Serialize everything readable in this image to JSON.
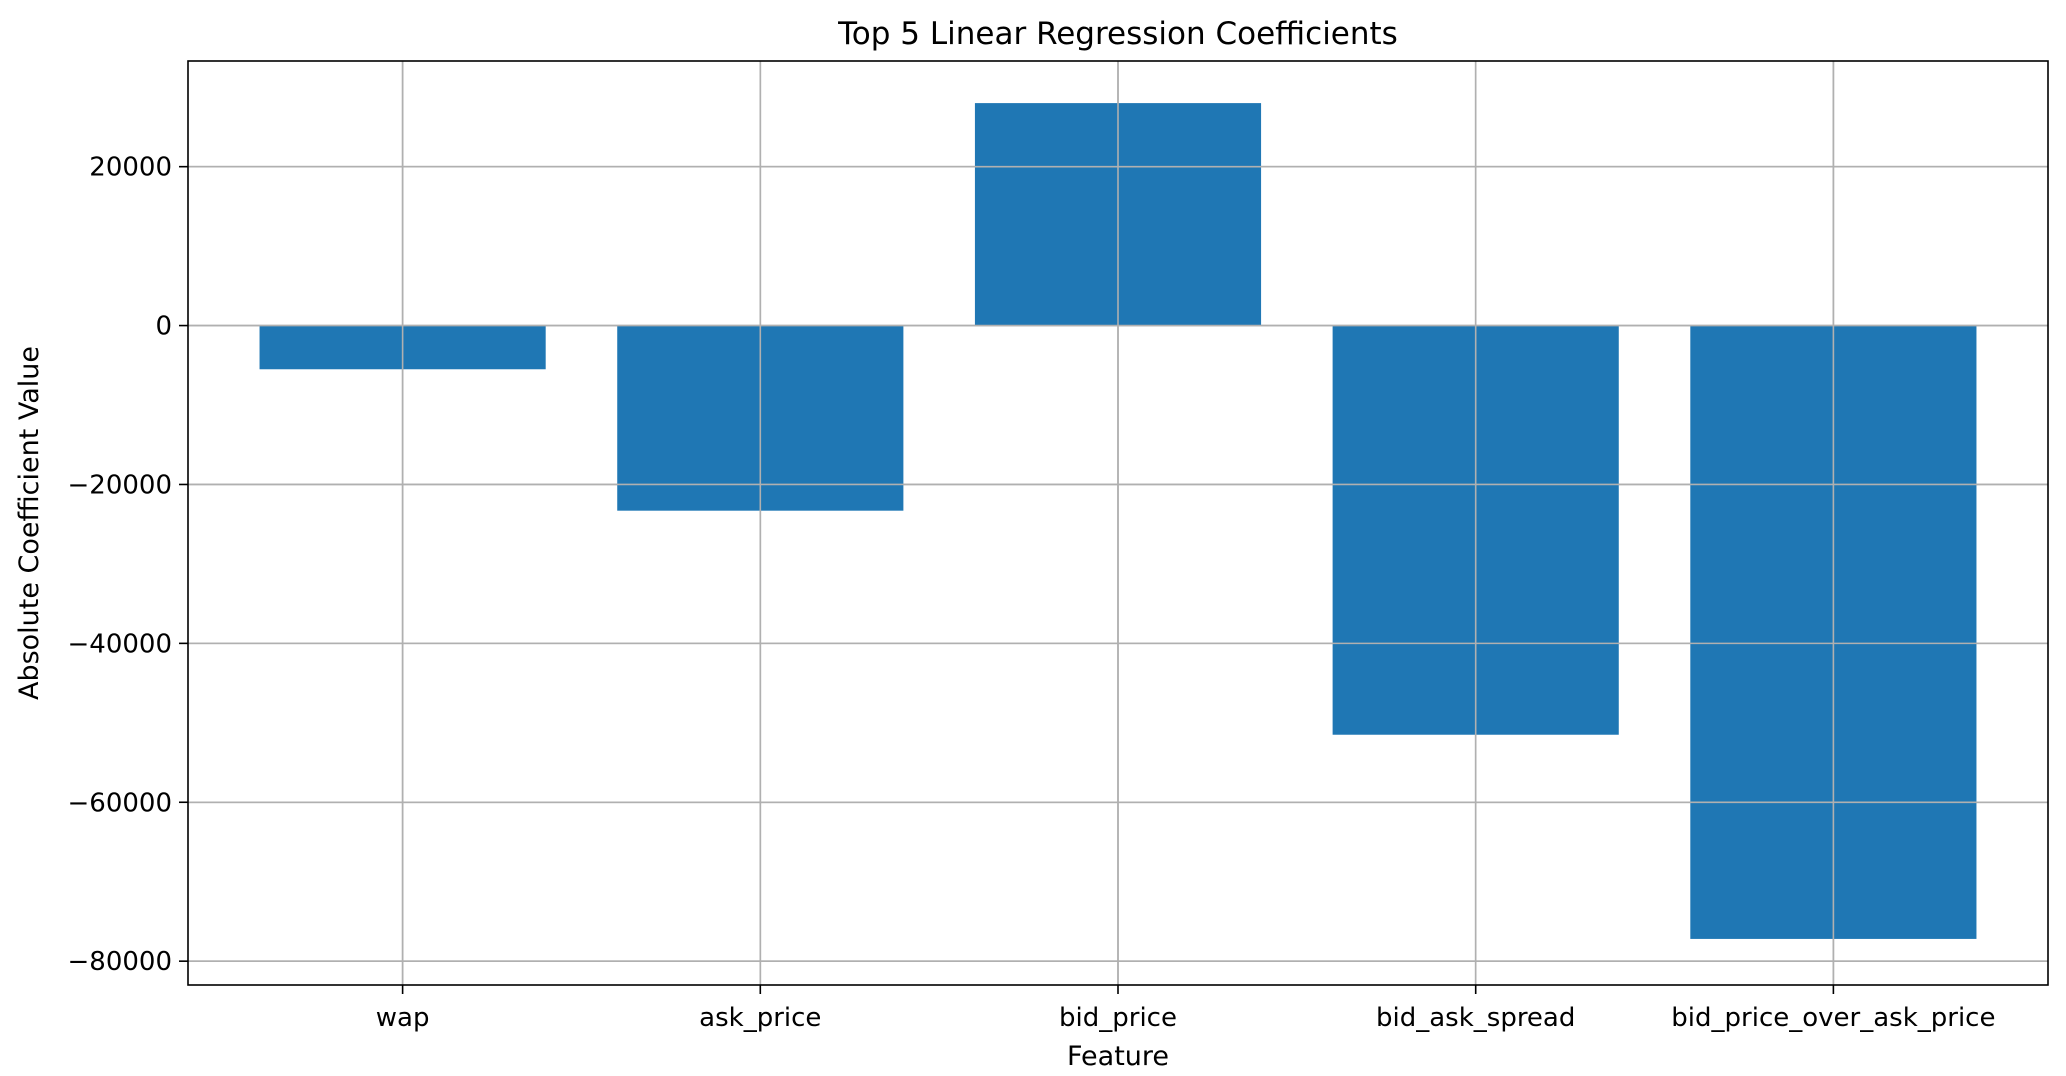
{
  "chart_data": {
    "type": "bar",
    "title": "Top 5 Linear Regression Coefficients",
    "xlabel": "Feature",
    "ylabel": "Absolute Coefficient Value",
    "categories": [
      "wap",
      "ask_price",
      "bid_price",
      "bid_ask_spread",
      "bid_price_over_ask_price"
    ],
    "values": [
      -5500,
      -23300,
      28000,
      -51500,
      -77200
    ],
    "ylim": [
      -83000,
      33300
    ],
    "yticks": [
      20000,
      0,
      -20000,
      -40000,
      -60000,
      -80000
    ],
    "ytick_labels": [
      "20000",
      "0",
      "−20000",
      "−40000",
      "−60000",
      "−80000"
    ],
    "grid": true,
    "legend": "none",
    "bar_color": "#1f77b4",
    "grid_color": "#b0b0b0"
  }
}
